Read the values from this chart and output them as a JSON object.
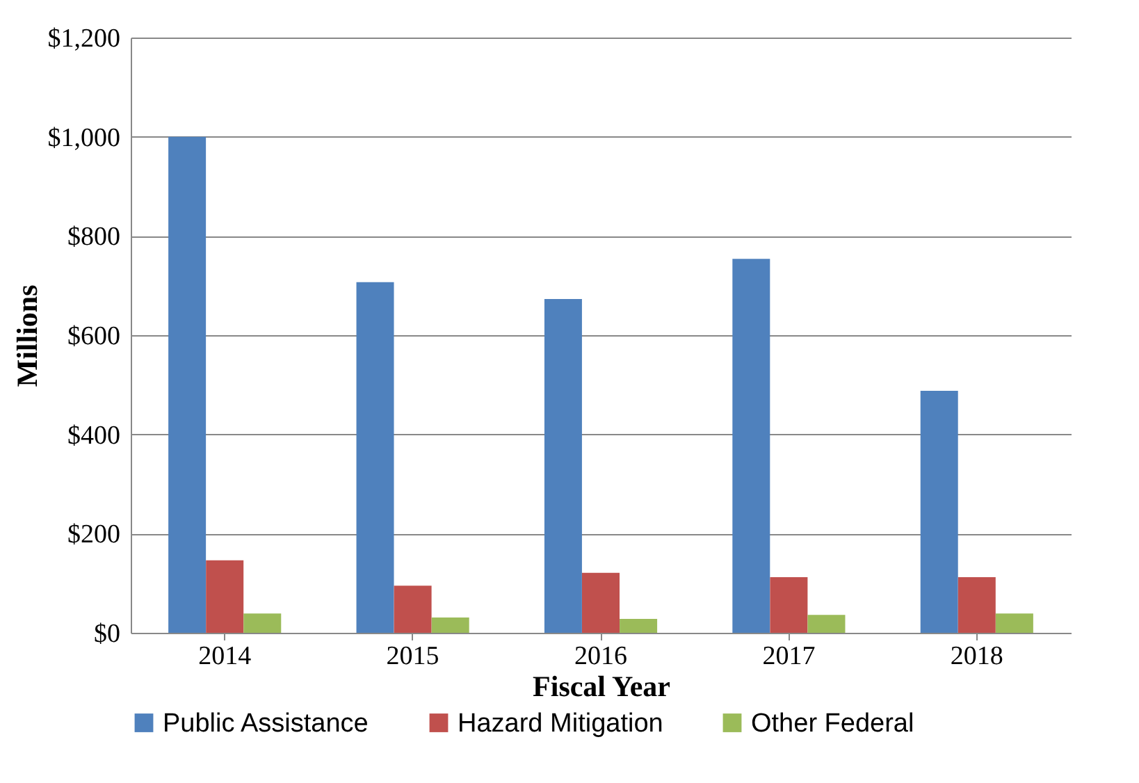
{
  "chart_data": {
    "type": "bar",
    "xlabel": "Fiscal Year",
    "ylabel": "Millions",
    "categories": [
      "2014",
      "2015",
      "2016",
      "2017",
      "2018"
    ],
    "series": [
      {
        "name": "Public Assistance",
        "color": "#4f81bd",
        "values": [
          1000,
          707,
          673,
          754,
          488
        ]
      },
      {
        "name": "Hazard Mitigation",
        "color": "#c0504d",
        "values": [
          146,
          95,
          121,
          112,
          112
        ]
      },
      {
        "name": "Other Federal",
        "color": "#9bbb59",
        "values": [
          39,
          31,
          28,
          36,
          39
        ]
      }
    ],
    "ylim": [
      0,
      1200
    ],
    "yticks": [
      {
        "value": 0,
        "label": "$0"
      },
      {
        "value": 200,
        "label": "$200"
      },
      {
        "value": 400,
        "label": "$400"
      },
      {
        "value": 600,
        "label": "$600"
      },
      {
        "value": 800,
        "label": "$800"
      },
      {
        "value": 1000,
        "label": "$1,000"
      },
      {
        "value": 1200,
        "label": "$1,200"
      }
    ],
    "grid": "y",
    "legend": "bottom"
  }
}
